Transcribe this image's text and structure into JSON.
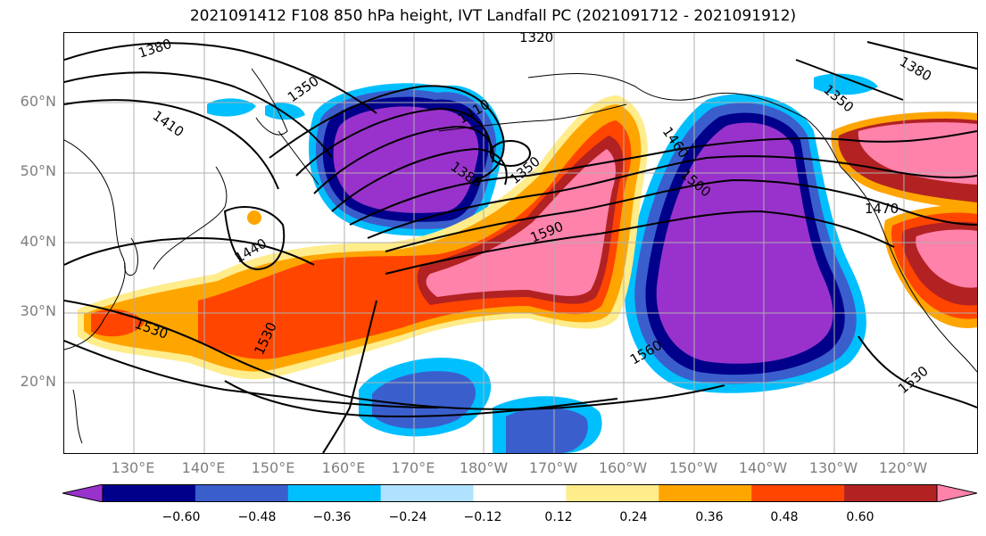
{
  "title": "2021091412 F108 850 hPa height, IVT Landfall PC (2021091712 - 2021091912)",
  "lat_labels": [
    "60°N",
    "50°N",
    "40°N",
    "30°N",
    "20°N"
  ],
  "lon_labels": [
    "130°E",
    "140°E",
    "150°E",
    "160°E",
    "170°E",
    "180°W",
    "170°W",
    "160°W",
    "150°W",
    "140°W",
    "130°W",
    "120°W"
  ],
  "colorbar": {
    "ticks": [
      "−0.60",
      "−0.48",
      "−0.36",
      "−0.24",
      "−0.12",
      "0.12",
      "0.24",
      "0.36",
      "0.48",
      "0.60"
    ],
    "colors": [
      "#9932cc",
      "#00008b",
      "#3a5fcd",
      "#00bfff",
      "#b0e2ff",
      "#ffffff",
      "#ffec8b",
      "#ffa500",
      "#ff4500",
      "#b22222",
      "#ff82ab"
    ]
  },
  "contour_labels": [
    "1380",
    "1320",
    "1350",
    "1410",
    "1410",
    "1380",
    "1350",
    "1440",
    "1590",
    "1460",
    "1500",
    "1470",
    "1350",
    "1380",
    "1530",
    "1530",
    "1560",
    "1530"
  ],
  "map": {
    "projection": "cylindrical",
    "lat_range": [
      10,
      70
    ],
    "lon_range": [
      120,
      251
    ],
    "variable": "IVT Landfall PC",
    "overlay": "850 hPa height contours"
  }
}
